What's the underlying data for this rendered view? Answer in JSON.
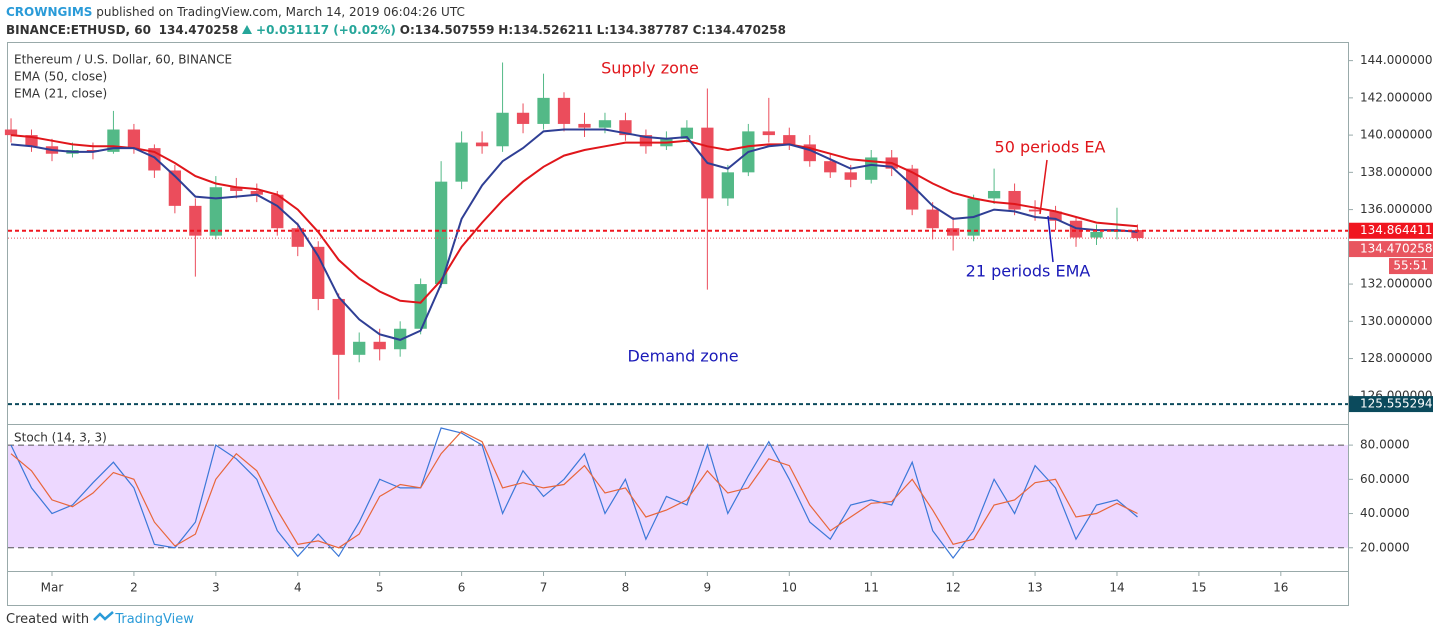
{
  "header": {
    "author": "CROWNGIMS",
    "published": "published on TradingView.com, March 14, 2019 06:04:26 UTC",
    "symbol": "BINANCE:ETHUSD, 60",
    "last": "134.470258",
    "change": "+0.031117 (+0.02%)",
    "open": "O:134.507559",
    "high": "H:134.526211",
    "low": "L:134.387787",
    "close": "C:134.470258"
  },
  "footer": {
    "created": "Created with",
    "brand": "TradingView"
  },
  "chart_data": [
    {
      "type": "candlestick",
      "title": "Ethereum / U.S. Dollar, 60, BINANCE",
      "annotations": [
        "Supply zone",
        "Demand zone",
        "50 periods EA",
        "21 periods EMA"
      ],
      "up_color": "#53b987",
      "down_color": "#eb4d5c",
      "x": [
        0.5,
        0.75,
        1.0,
        1.25,
        1.5,
        1.75,
        2.0,
        2.25,
        2.5,
        2.75,
        3.0,
        3.25,
        3.5,
        3.75,
        4.0,
        4.25,
        4.5,
        4.75,
        5.0,
        5.25,
        5.5,
        5.75,
        6.0,
        6.25,
        6.5,
        6.75,
        7.0,
        7.25,
        7.5,
        7.75,
        8.0,
        8.25,
        8.5,
        8.75,
        9.0,
        9.25,
        9.5,
        9.75,
        10.0,
        10.25,
        10.5,
        10.75,
        11.0,
        11.25,
        11.5,
        11.75,
        12.0,
        12.25,
        12.5,
        12.75,
        13.0,
        13.25,
        13.5,
        13.75,
        14.0,
        14.25
      ],
      "open": [
        140.3,
        140.0,
        139.4,
        139.0,
        139.2,
        139.1,
        140.3,
        139.3,
        138.1,
        136.2,
        134.6,
        137.2,
        137.0,
        136.8,
        135.0,
        134.0,
        131.2,
        128.2,
        128.9,
        128.5,
        129.6,
        132.0,
        137.5,
        139.6,
        139.4,
        141.2,
        140.6,
        142.0,
        140.6,
        140.4,
        140.8,
        140.0,
        139.4,
        139.8,
        140.4,
        136.6,
        138.0,
        140.2,
        140.0,
        139.5,
        138.6,
        138.0,
        137.6,
        138.8,
        138.2,
        136.0,
        135.0,
        134.6,
        136.6,
        137.0,
        136.0,
        135.9,
        135.4,
        134.5,
        134.8,
        134.9
      ],
      "high": [
        140.9,
        140.3,
        139.8,
        139.6,
        139.6,
        141.3,
        140.6,
        139.5,
        138.4,
        136.6,
        137.8,
        137.7,
        137.4,
        137.0,
        135.3,
        134.3,
        131.5,
        129.4,
        129.6,
        130.0,
        132.3,
        138.6,
        140.2,
        140.2,
        143.9,
        141.7,
        143.3,
        142.3,
        141.2,
        141.2,
        141.2,
        140.3,
        140.2,
        140.8,
        142.5,
        138.4,
        140.6,
        142.0,
        140.4,
        140.0,
        139.0,
        138.4,
        139.2,
        139.2,
        138.4,
        136.4,
        135.6,
        136.8,
        138.2,
        137.4,
        136.5,
        136.2,
        135.6,
        135.2,
        136.1,
        135.2
      ],
      "low": [
        139.6,
        139.1,
        138.6,
        138.8,
        138.7,
        139.0,
        139.0,
        137.7,
        135.8,
        132.4,
        134.4,
        136.6,
        136.4,
        134.6,
        133.5,
        130.6,
        125.8,
        127.8,
        127.9,
        128.1,
        129.3,
        131.8,
        137.1,
        139.0,
        139.1,
        140.1,
        140.3,
        140.2,
        139.9,
        140.1,
        139.7,
        139.0,
        139.2,
        139.6,
        131.7,
        136.2,
        137.8,
        139.6,
        139.2,
        138.3,
        137.7,
        137.2,
        137.4,
        137.8,
        135.7,
        134.4,
        133.8,
        134.3,
        136.3,
        135.7,
        135.4,
        134.9,
        134.0,
        134.1,
        134.4,
        134.3
      ],
      "close": [
        140.0,
        139.4,
        139.0,
        139.2,
        139.1,
        140.3,
        139.3,
        138.1,
        136.2,
        134.6,
        137.2,
        137.0,
        136.8,
        135.0,
        134.0,
        131.2,
        128.2,
        128.9,
        128.5,
        129.6,
        132.0,
        137.5,
        139.6,
        139.4,
        141.2,
        140.6,
        142.0,
        140.6,
        140.4,
        140.8,
        140.0,
        139.4,
        139.8,
        140.4,
        136.6,
        138.0,
        140.2,
        140.0,
        139.5,
        138.6,
        138.0,
        137.6,
        138.8,
        138.2,
        136.0,
        135.0,
        134.6,
        136.6,
        137.0,
        136.0,
        135.9,
        135.4,
        134.5,
        134.8,
        134.9,
        134.470258
      ],
      "series": [
        {
          "name": "EMA (50, close)",
          "color": "#e0161b",
          "values": [
            140.0,
            139.9,
            139.7,
            139.5,
            139.4,
            139.4,
            139.3,
            139.1,
            138.5,
            137.8,
            137.4,
            137.2,
            137.1,
            136.8,
            136.0,
            134.8,
            133.3,
            132.3,
            131.6,
            131.1,
            131.0,
            132.2,
            134.0,
            135.3,
            136.5,
            137.5,
            138.3,
            138.9,
            139.2,
            139.4,
            139.6,
            139.6,
            139.6,
            139.7,
            139.4,
            139.2,
            139.4,
            139.5,
            139.5,
            139.3,
            139.0,
            138.7,
            138.6,
            138.5,
            138.0,
            137.4,
            136.9,
            136.6,
            136.4,
            136.3,
            136.1,
            135.9,
            135.6,
            135.3,
            135.2,
            135.1
          ]
        },
        {
          "name": "EMA (21, close)",
          "color": "#2f3f95",
          "values": [
            139.5,
            139.4,
            139.2,
            139.1,
            139.1,
            139.3,
            139.3,
            138.8,
            137.8,
            136.7,
            136.6,
            136.7,
            136.8,
            136.2,
            135.2,
            133.5,
            131.3,
            130.1,
            129.3,
            129.0,
            129.5,
            132.0,
            135.5,
            137.3,
            138.6,
            139.3,
            140.2,
            140.3,
            140.3,
            140.3,
            140.1,
            139.9,
            139.8,
            139.9,
            138.5,
            138.2,
            139.1,
            139.4,
            139.5,
            139.2,
            138.7,
            138.2,
            138.4,
            138.3,
            137.3,
            136.2,
            135.5,
            135.6,
            136.0,
            135.9,
            135.6,
            135.5,
            135.0,
            134.9,
            134.9,
            134.8
          ]
        }
      ],
      "price_lines": [
        {
          "value": 134.864411,
          "color": "#f0151f"
        },
        {
          "value": 134.470258,
          "color": "#e8555f"
        },
        {
          "value": 125.555294,
          "color": "#0b4a5c"
        }
      ],
      "countdown": "55:51",
      "ylim": [
        124.7,
        145.0
      ],
      "yticks": [
        {
          "value": 126,
          "label": "126.000000"
        },
        {
          "value": 128,
          "label": "128.000000"
        },
        {
          "value": 130,
          "label": "130.000000"
        },
        {
          "value": 132,
          "label": "132.000000"
        },
        {
          "value": 134,
          "label": "134.000000"
        },
        {
          "value": 136,
          "label": "136.000000"
        },
        {
          "value": 138,
          "label": "138.000000"
        },
        {
          "value": 140,
          "label": "140.000000"
        },
        {
          "value": 142,
          "label": "142.000000"
        },
        {
          "value": 144,
          "label": "144.000000"
        }
      ],
      "xlim": [
        0.463,
        16.82
      ],
      "xticks": [
        {
          "value": 1,
          "label": "Mar"
        },
        2,
        3,
        4,
        5,
        6,
        7,
        8,
        9,
        10,
        11,
        12,
        13,
        14,
        15,
        16
      ],
      "grid": false
    },
    {
      "type": "line",
      "title": "Stoch (14, 3, 3)",
      "x": [
        0.5,
        0.75,
        1.0,
        1.25,
        1.5,
        1.75,
        2.0,
        2.25,
        2.5,
        2.75,
        3.0,
        3.25,
        3.5,
        3.75,
        4.0,
        4.25,
        4.5,
        4.75,
        5.0,
        5.25,
        5.5,
        5.75,
        6.0,
        6.25,
        6.5,
        6.75,
        7.0,
        7.25,
        7.5,
        7.75,
        8.0,
        8.25,
        8.5,
        8.75,
        9.0,
        9.25,
        9.5,
        9.75,
        10.0,
        10.25,
        10.5,
        10.75,
        11.0,
        11.25,
        11.5,
        11.75,
        12.0,
        12.25,
        12.5,
        12.75,
        13.0,
        13.25,
        13.5,
        13.75,
        14.0,
        14.25
      ],
      "series": [
        {
          "color": "#3c78d8",
          "values": [
            80,
            55,
            40,
            45,
            58,
            70,
            55,
            22,
            20,
            35,
            80,
            72,
            60,
            30,
            15,
            28,
            15,
            35,
            60,
            55,
            55,
            90,
            87,
            80,
            40,
            65,
            50,
            60,
            75,
            40,
            60,
            25,
            50,
            45,
            80,
            40,
            62,
            82,
            60,
            35,
            25,
            45,
            48,
            45,
            70,
            30,
            14,
            30,
            60,
            40,
            68,
            55,
            25,
            45,
            48,
            38
          ]
        },
        {
          "color": "#e8663b",
          "values": [
            75,
            65,
            48,
            44,
            52,
            64,
            60,
            35,
            21,
            28,
            60,
            75,
            65,
            42,
            22,
            24,
            20,
            28,
            50,
            57,
            55,
            75,
            88,
            82,
            55,
            58,
            55,
            57,
            68,
            52,
            55,
            38,
            42,
            48,
            65,
            52,
            55,
            72,
            68,
            45,
            30,
            38,
            46,
            47,
            60,
            42,
            22,
            25,
            45,
            48,
            58,
            60,
            38,
            40,
            46,
            40
          ]
        }
      ],
      "band": [
        20,
        80
      ],
      "band_color": "#9c27ff",
      "ylim": [
        7,
        90
      ],
      "yticks": [
        {
          "value": 20,
          "label": "20.0000"
        },
        {
          "value": 40,
          "label": "40.0000"
        },
        {
          "value": 60,
          "label": "60.0000"
        },
        {
          "value": 80,
          "label": "80.0000"
        }
      ],
      "grid": false
    }
  ]
}
